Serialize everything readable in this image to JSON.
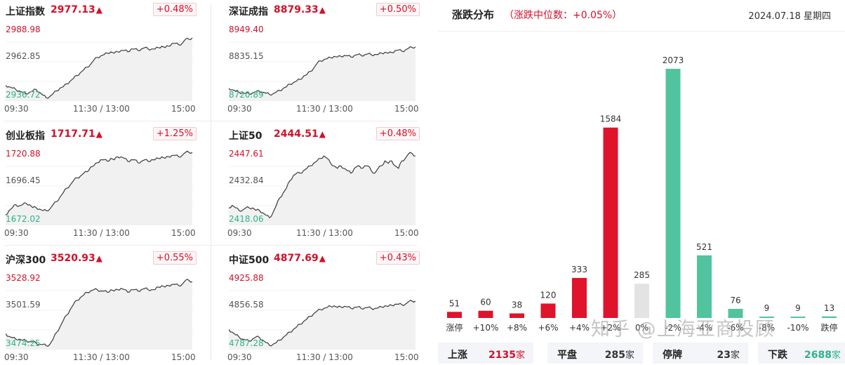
{
  "colors": {
    "up": "#d3102a",
    "down": "#2eb388",
    "flat": "#e3e3e3",
    "bar_up": "#e0132c",
    "bar_down": "#52c39f"
  },
  "indices": [
    {
      "name": "上证指数",
      "value": "2977.13",
      "pct": "+0.48%",
      "arrow": "▲",
      "high": "2988.98",
      "mid": "2962.85",
      "low": "2936.72",
      "x_labels": [
        "09:30",
        "11:30 / 13:00",
        "15:00"
      ],
      "series": [
        2946,
        2945,
        2944,
        2943,
        2942,
        2941,
        2940,
        2941,
        2942,
        2943,
        2941,
        2939,
        2937,
        2938,
        2940,
        2942,
        2944,
        2945,
        2947,
        2949,
        2951,
        2953,
        2955,
        2957,
        2959,
        2961,
        2964,
        2966,
        2967,
        2968,
        2969,
        2970,
        2969,
        2970,
        2971,
        2971,
        2970,
        2972,
        2972,
        2971,
        2972,
        2973,
        2972,
        2972,
        2972,
        2973,
        2974,
        2973,
        2974,
        2976,
        2976,
        2975,
        2976,
        2979,
        2979,
        2980
      ]
    },
    {
      "name": "深证成指",
      "value": "8879.33",
      "pct": "+0.50%",
      "arrow": "▲",
      "high": "8949.40",
      "mid": "8835.15",
      "low": "8720.89",
      "x_labels": [
        "09:30",
        "11:30 / 13:00",
        "15:00"
      ],
      "series": [
        8752,
        8748,
        8744,
        8740,
        8738,
        8736,
        8735,
        8738,
        8741,
        8743,
        8740,
        8737,
        8733,
        8735,
        8740,
        8745,
        8752,
        8757,
        8765,
        8770,
        8775,
        8780,
        8790,
        8795,
        8805,
        8815,
        8830,
        8838,
        8842,
        8845,
        8848,
        8852,
        8850,
        8852,
        8855,
        8854,
        8850,
        8855,
        8858,
        8855,
        8857,
        8860,
        8857,
        8858,
        8858,
        8862,
        8865,
        8862,
        8864,
        8870,
        8872,
        8868,
        8872,
        8878,
        8880,
        8882
      ]
    },
    {
      "name": "创业板指",
      "value": "1717.71",
      "pct": "+1.25%",
      "arrow": "▲",
      "high": "1720.88",
      "mid": "1696.45",
      "low": "1672.02",
      "x_labels": [
        "09:30",
        "11:30 / 13:00",
        "15:00"
      ],
      "series": [
        1677,
        1680,
        1682,
        1684,
        1683,
        1684,
        1685,
        1684,
        1682,
        1682,
        1681,
        1680,
        1680,
        1681,
        1684,
        1686,
        1689,
        1692,
        1695,
        1697,
        1700,
        1702,
        1703,
        1705,
        1706,
        1709,
        1710,
        1712,
        1714,
        1714,
        1713,
        1715,
        1714,
        1716,
        1716,
        1715,
        1713,
        1714,
        1714,
        1712,
        1713,
        1714,
        1713,
        1714,
        1714,
        1715,
        1716,
        1715,
        1716,
        1717,
        1717,
        1716,
        1717,
        1719,
        1719,
        1719
      ]
    },
    {
      "name": "上证50",
      "value": "2444.51",
      "pct": "+0.48%",
      "arrow": "▲",
      "high": "2447.61",
      "mid": "2432.84",
      "low": "2418.06",
      "x_labels": [
        "09:30",
        "11:30 / 13:00",
        "15:00"
      ],
      "series": [
        2424,
        2425,
        2424,
        2423,
        2423,
        2424,
        2424,
        2424,
        2423,
        2423,
        2422,
        2421,
        2420,
        2422,
        2425,
        2428,
        2430,
        2432,
        2435,
        2437,
        2438,
        2438,
        2439,
        2440,
        2441,
        2442,
        2443,
        2444,
        2445,
        2444,
        2442,
        2441,
        2440,
        2441,
        2440,
        2439,
        2438,
        2440,
        2441,
        2440,
        2441,
        2441,
        2439,
        2438,
        2440,
        2441,
        2443,
        2442,
        2443,
        2441,
        2440,
        2443,
        2444,
        2446,
        2446,
        2445
      ]
    },
    {
      "name": "沪深300",
      "value": "3520.93",
      "pct": "+0.55%",
      "arrow": "▲",
      "high": "3528.92",
      "mid": "3501.59",
      "low": "3474.25",
      "x_labels": [
        "09:30",
        "11:30 / 13:00",
        "15:00"
      ],
      "series": [
        3484,
        3482,
        3481,
        3480,
        3480,
        3479,
        3479,
        3478,
        3478,
        3477,
        3476,
        3476,
        3475,
        3476,
        3480,
        3485,
        3489,
        3494,
        3498,
        3502,
        3506,
        3509,
        3511,
        3513,
        3515,
        3516,
        3517,
        3517,
        3516,
        3516,
        3515,
        3517,
        3516,
        3517,
        3518,
        3517,
        3515,
        3517,
        3517,
        3516,
        3517,
        3518,
        3517,
        3517,
        3517,
        3519,
        3520,
        3519,
        3520,
        3521,
        3521,
        3520,
        3521,
        3524,
        3524,
        3523
      ]
    },
    {
      "name": "中证500",
      "value": "4877.69",
      "pct": "+0.43%",
      "arrow": "▲",
      "high": "4925.88",
      "mid": "4856.58",
      "low": "4787.28",
      "x_labels": [
        "09:30",
        "11:30 / 13:00",
        "15:00"
      ],
      "series": [
        4820,
        4815,
        4810,
        4806,
        4802,
        4800,
        4798,
        4802,
        4806,
        4805,
        4800,
        4795,
        4790,
        4792,
        4795,
        4800,
        4805,
        4810,
        4815,
        4820,
        4825,
        4830,
        4835,
        4840,
        4845,
        4850,
        4855,
        4858,
        4860,
        4862,
        4864,
        4865,
        4862,
        4863,
        4864,
        4863,
        4860,
        4862,
        4863,
        4860,
        4861,
        4862,
        4860,
        4860,
        4861,
        4863,
        4865,
        4864,
        4866,
        4868,
        4868,
        4867,
        4868,
        4873,
        4874,
        4874
      ]
    }
  ],
  "distribution": {
    "title": "涨跌分布",
    "subtitle": "（涨跌中位数：+0.05%）",
    "date": "2024.07.18 星期四",
    "chart_data": {
      "type": "bar",
      "categories": [
        "涨停",
        "+10%",
        "+8%",
        "+6%",
        "+4%",
        "+2%",
        "0%",
        "-2%",
        "-4%",
        "-6%",
        "-8%",
        "-10%",
        "跌停"
      ],
      "values": [
        51,
        60,
        38,
        120,
        333,
        1584,
        285,
        2073,
        521,
        76,
        9,
        9,
        13
      ],
      "ylim": [
        0,
        2073
      ]
    },
    "summary": [
      {
        "label": "上涨",
        "value": "2135",
        "unit": "家",
        "color": "#d3102a"
      },
      {
        "label": "平盘",
        "value": "285",
        "unit": "家",
        "color": "#333333"
      },
      {
        "label": "停牌",
        "value": "23",
        "unit": "家",
        "color": "#333333"
      },
      {
        "label": "下跌",
        "value": "2688",
        "unit": "家",
        "color": "#2eb388"
      }
    ]
  },
  "watermark": "知乎 @上海亚商投顾"
}
